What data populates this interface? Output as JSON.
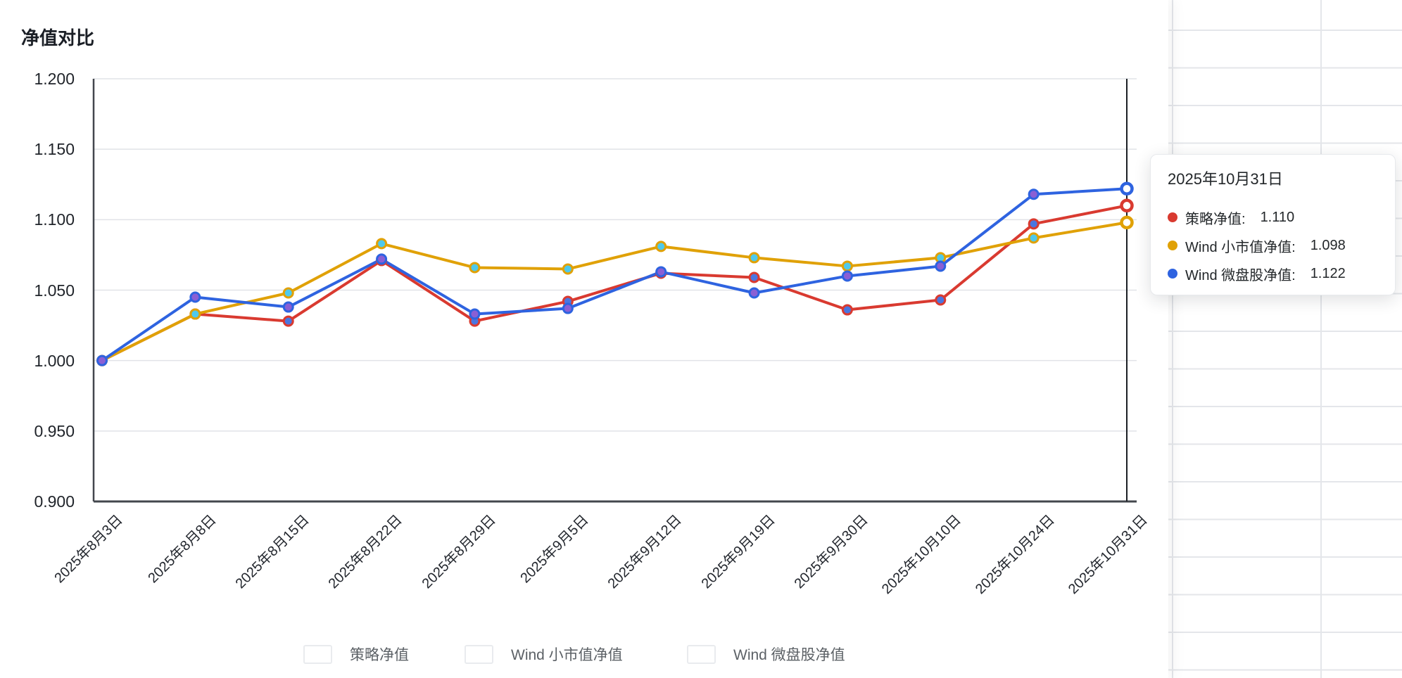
{
  "title": "净值对比",
  "tooltip": {
    "date": "2025年10月31日",
    "rows": [
      {
        "label": "策略净值:",
        "value": "1.110",
        "color": "#d93a30"
      },
      {
        "label": "Wind 小市值净值:",
        "value": "1.098",
        "color": "#e0a106"
      },
      {
        "label": "Wind 微盘股净值:",
        "value": "1.122",
        "color": "#2e63e0"
      }
    ]
  },
  "legend": [
    {
      "label": "策略净值",
      "color": "#d93a30"
    },
    {
      "label": "Wind 小市值净值",
      "color": "#e0a106"
    },
    {
      "label": "Wind 微盘股净值",
      "color": "#2e63e0"
    }
  ],
  "chart_data": {
    "type": "line",
    "title": "净值对比",
    "categories": [
      "2025年8月3日",
      "2025年8月8日",
      "2025年8月15日",
      "2025年8月22日",
      "2025年8月29日",
      "2025年9月5日",
      "2025年9月12日",
      "2025年9月19日",
      "2025年9月30日",
      "2025年10月10日",
      "2025年10月24日",
      "2025年10月31日"
    ],
    "series": [
      {
        "name": "策略净值",
        "color": "#d93a30",
        "marker_fill": "#4a76e0",
        "values": [
          1.0,
          1.033,
          1.028,
          1.071,
          1.028,
          1.042,
          1.062,
          1.059,
          1.036,
          1.043,
          1.097,
          1.11
        ]
      },
      {
        "name": "Wind 小市值净值",
        "color": "#e0a106",
        "marker_fill": "#4ec9ec",
        "values": [
          1.0,
          1.033,
          1.048,
          1.083,
          1.066,
          1.065,
          1.081,
          1.073,
          1.067,
          1.073,
          1.087,
          1.098
        ]
      },
      {
        "name": "Wind 微盘股净值",
        "color": "#2e63e0",
        "marker_fill": "#8a5fd4",
        "values": [
          1.0,
          1.045,
          1.038,
          1.072,
          1.033,
          1.037,
          1.063,
          1.048,
          1.06,
          1.067,
          1.118,
          1.122
        ]
      }
    ],
    "ylim": [
      0.9,
      1.2
    ],
    "y_ticks": [
      "1.200",
      "1.150",
      "1.100",
      "1.050",
      "1.000",
      "0.950",
      "0.900"
    ],
    "grid": true,
    "legend_position": "bottom",
    "x_label_rotation": -45,
    "highlighted_index": 11,
    "highlighted_category": "2025年10月31日",
    "highlighted_values": {
      "策略净值": "1.110",
      "Wind 小市值净值": "1.098",
      "Wind 微盘股净值": "1.122"
    }
  }
}
